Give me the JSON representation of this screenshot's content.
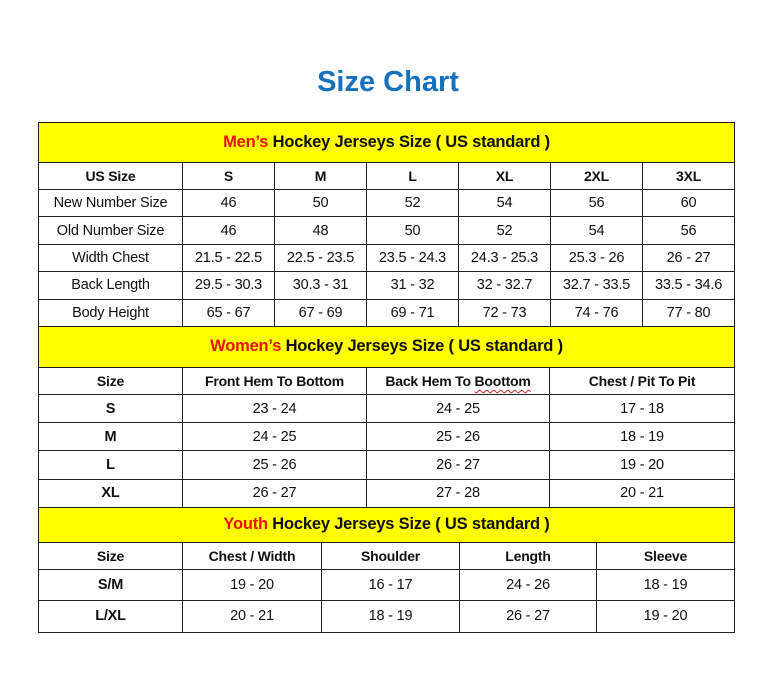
{
  "title": "Size Chart",
  "colors": {
    "title": "#1570be",
    "band": "#ffff00",
    "highlight": "#e8130f"
  },
  "men": {
    "band_highlight": "Men’s",
    "band_text": " Hockey Jerseys Size ( US standard )",
    "headers": [
      "US Size",
      "S",
      "M",
      "L",
      "XL",
      "2XL",
      "3XL"
    ],
    "rows": [
      [
        "New Number Size",
        "46",
        "50",
        "52",
        "54",
        "56",
        "60"
      ],
      [
        "Old Number Size",
        "46",
        "48",
        "50",
        "52",
        "54",
        "56"
      ],
      [
        "Width Chest",
        "21.5 - 22.5",
        "22.5 - 23.5",
        "23.5 - 24.3",
        "24.3 - 25.3",
        "25.3 - 26",
        "26 - 27"
      ],
      [
        "Back Length",
        "29.5 - 30.3",
        "30.3 - 31",
        "31 - 32",
        "32 - 32.7",
        "32.7 - 33.5",
        "33.5 - 34.6"
      ],
      [
        "Body Height",
        "65 - 67",
        "67 - 69",
        "69 - 71",
        "72 - 73",
        "74 - 76",
        "77 - 80"
      ]
    ]
  },
  "women": {
    "band_highlight": "Women’s",
    "band_text": " Hockey Jerseys Size ( US standard )",
    "headers": [
      "Size",
      "Front Hem To Bottom",
      "Back Hem To Boottom",
      "Chest / Pit To Pit"
    ],
    "rows": [
      [
        "S",
        "23 - 24",
        "24 - 25",
        "17 - 18"
      ],
      [
        "M",
        "24 - 25",
        "25 - 26",
        "18 - 19"
      ],
      [
        "L",
        "25 - 26",
        "26 - 27",
        "19 - 20"
      ],
      [
        "XL",
        "26 - 27",
        "27 - 28",
        "20 - 21"
      ]
    ]
  },
  "youth": {
    "band_highlight": "Youth",
    "band_text": " Hockey Jerseys Size ( US standard )",
    "headers": [
      "Size",
      "Chest / Width",
      "Shoulder",
      "Length",
      "Sleeve"
    ],
    "rows": [
      [
        "S/M",
        "19 - 20",
        "16 - 17",
        "24 - 26",
        "18 - 19"
      ],
      [
        "L/XL",
        "20 - 21",
        "18 - 19",
        "26 - 27",
        "19 - 20"
      ]
    ]
  }
}
